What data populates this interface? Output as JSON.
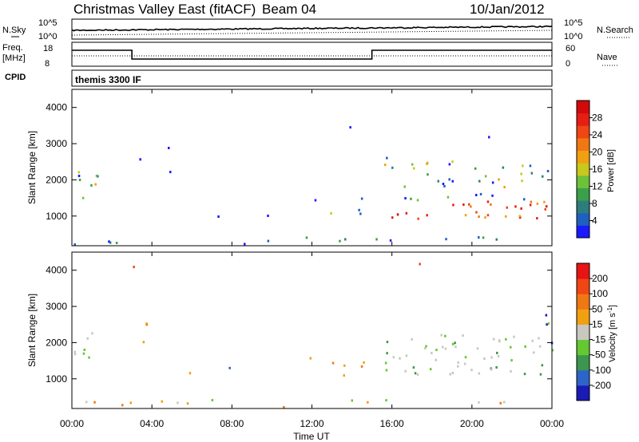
{
  "header": {
    "title": "Christmas Valley East (fitACF)",
    "beam": "Beam 04",
    "date": "10/Jan/2012"
  },
  "summary_panels": {
    "noise": {
      "left_label": "N.Sky",
      "right_label": "N.Search",
      "left_ticks": [
        "10^5",
        "10^0"
      ],
      "right_ticks": [
        "10^5",
        "10^0"
      ]
    },
    "freq": {
      "left_label_1": "Freq.",
      "left_label_2": "[MHz]",
      "right_label": "Nave",
      "left_ticks": [
        "18",
        "8"
      ],
      "right_ticks": [
        "60",
        "0"
      ]
    },
    "cpid": {
      "label": "CPID",
      "value": "themis 3300 IF"
    }
  },
  "chart_data": [
    {
      "type": "heatmap",
      "parameter": "Power",
      "ylabel": "Slant Range [km]",
      "xlabel": "Time UT",
      "x_ticks": [
        "00:00",
        "04:00",
        "08:00",
        "12:00",
        "16:00",
        "20:00",
        "00:00"
      ],
      "xlim_hours": [
        0,
        24
      ],
      "ylim_km": [
        180,
        4500
      ],
      "y_ticks": [
        1000,
        2000,
        3000,
        4000
      ],
      "colorbar": {
        "label": "Power [dB]",
        "ticks": [
          4,
          8,
          12,
          16,
          20,
          24,
          28
        ],
        "range": [
          0,
          32
        ],
        "colors": [
          "#1a1aff",
          "#1f5fc0",
          "#2e7d7d",
          "#3aa04a",
          "#6dc23a",
          "#c8c81e",
          "#f0a010",
          "#f07814",
          "#f04614",
          "#e61e14",
          "#d20a0a"
        ]
      },
      "scatter_regions": [
        {
          "t": [
            0.0,
            1.3
          ],
          "r": [
            1300,
            2300
          ],
          "level": 10
        },
        {
          "t": [
            3.2,
            3.7
          ],
          "r": [
            2350,
            2650
          ],
          "level": 4
        },
        {
          "t": [
            8.0,
            10.0
          ],
          "r": [
            950,
            1350
          ],
          "level": 4
        },
        {
          "t": [
            11.8,
            14.6
          ],
          "r": [
            1050,
            1650
          ],
          "level": 9
        },
        {
          "t": [
            15.6,
            24.0
          ],
          "r": [
            900,
            2600
          ],
          "level": 12
        },
        {
          "t": [
            0.0,
            24.0
          ],
          "r": [
            180,
            420
          ],
          "level": 5
        }
      ]
    },
    {
      "type": "heatmap",
      "parameter": "Velocity",
      "ylabel": "Slant Range [km]",
      "xlabel": "Time UT",
      "x_ticks": [
        "00:00",
        "04:00",
        "08:00",
        "12:00",
        "16:00",
        "20:00",
        "00:00"
      ],
      "xlim_hours": [
        0,
        24
      ],
      "ylim_km": [
        180,
        4500
      ],
      "y_ticks": [
        1000,
        2000,
        3000,
        4000
      ],
      "colorbar": {
        "label": "Velocity [m s^-1]",
        "label_main": "Velocity",
        "label_unit": "[m s",
        "label_exp": "-1",
        "label_close": "]",
        "ticks": [
          200,
          100,
          50,
          15,
          -15,
          -50,
          -100,
          -200
        ],
        "colors": [
          "#1a1ab4",
          "#2d64c8",
          "#3c9650",
          "#64c832",
          "#c8c8c0",
          "#f0a010",
          "#f07814",
          "#f04614",
          "#e61414"
        ]
      },
      "scatter_regions": [
        {
          "t": [
            0.0,
            1.3
          ],
          "r": [
            1400,
            2300
          ],
          "level": "green/gray"
        },
        {
          "t": [
            11.8,
            14.6
          ],
          "r": [
            1050,
            1650
          ],
          "level": "orange"
        },
        {
          "t": [
            15.6,
            24.0
          ],
          "r": [
            1100,
            2200
          ],
          "level": "gray"
        },
        {
          "t": [
            23.2,
            24.0
          ],
          "r": [
            1900,
            2800
          ],
          "level": "green/blue"
        },
        {
          "t": [
            0.0,
            24.0
          ],
          "r": [
            180,
            420
          ],
          "level": "mixed"
        }
      ]
    }
  ]
}
